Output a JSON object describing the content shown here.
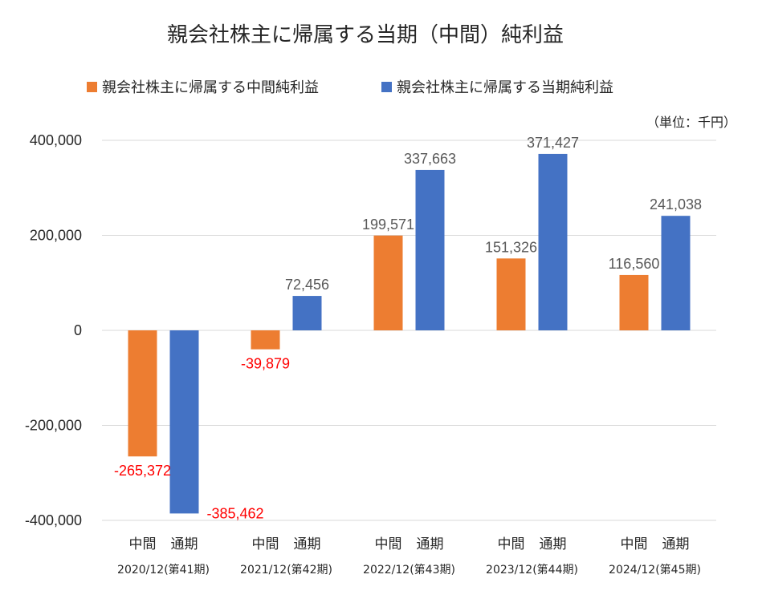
{
  "chart_data": {
    "type": "bar",
    "title": "親会社株主に帰属する当期（中間）純利益",
    "unit_note": "（単位：千円）",
    "categories": [
      "2020/12(第41期)",
      "2021/12(第42期)",
      "2022/12(第43期)",
      "2023/12(第44期)",
      "2024/12(第45期)"
    ],
    "bar_sub_labels": [
      "中間",
      "通期"
    ],
    "series": [
      {
        "name": "親会社株主に帰属する中間純利益",
        "color": "#ED7D31",
        "values": [
          -265372,
          -39879,
          199571,
          151326,
          116560
        ]
      },
      {
        "name": "親会社株主に帰属する当期純利益",
        "color": "#4472C4",
        "values": [
          -385462,
          72456,
          337663,
          371427,
          241038
        ]
      }
    ],
    "ylim": [
      -400000,
      400000
    ],
    "y_ticks": [
      400000,
      200000,
      0,
      -200000,
      -400000
    ],
    "y_tick_labels": [
      "400,000",
      "200,000",
      "0",
      "-200,000",
      "-400,000"
    ],
    "data_labels": [
      [
        "-265,372",
        "-39,879",
        "199,571",
        "151,326",
        "116,560"
      ],
      [
        "-385,462",
        "72,456",
        "337,663",
        "371,427",
        "241,038"
      ]
    ],
    "positive_label_color": "#595959",
    "negative_label_color": "#FF0000",
    "legend_position": "top",
    "grid": true
  }
}
